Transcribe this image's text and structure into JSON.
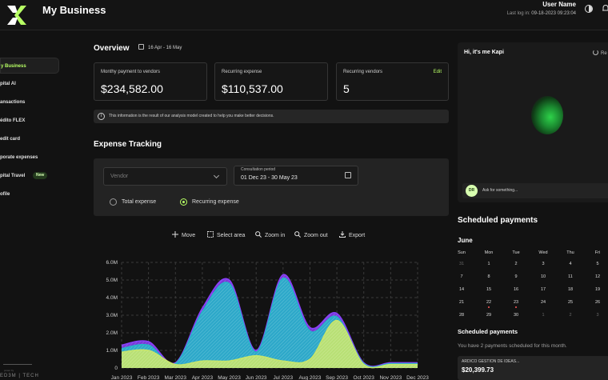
{
  "header": {
    "app_title": "My Business",
    "user_name": "User Name",
    "last_login_label": "Last log in:",
    "last_login_value": "09-18-2023 09:23:04"
  },
  "sidebar": {
    "items": [
      {
        "label": "y Business"
      },
      {
        "label": "pital AI"
      },
      {
        "label": "ansactions"
      },
      {
        "label": "édito FLEX"
      },
      {
        "label": "edit card"
      },
      {
        "label": "porate expenses"
      },
      {
        "label": "pital Travel",
        "badge": "New"
      },
      {
        "label": "ofile"
      }
    ],
    "footer_brand": "ED3M | TECH",
    "footer_small": "power by"
  },
  "overview": {
    "title": "Overview",
    "date_range": "16 Apr - 16 May",
    "cards": [
      {
        "label": "Monthy payment to vendors",
        "value": "$234,582.00"
      },
      {
        "label": "Recurring expense",
        "value": "$110,537.00"
      },
      {
        "label": "Recurring vendors",
        "value": "5",
        "action": "Edit"
      }
    ],
    "info": "This information is the result of our analysis model created to help you make better decisions."
  },
  "expense_tracking": {
    "title": "Expense Tracking",
    "vendor_placeholder": "Vendor",
    "period_label": "Consultation period",
    "period_value": "01 Dec 23 - 30 May 23",
    "radio_total": "Total expense",
    "radio_recurring": "Recurring expense",
    "selected": "recurring"
  },
  "toolbar": {
    "move": "Move",
    "select_area": "Select area",
    "zoom_in": "Zoom in",
    "zoom_out": "Zoom out",
    "export": "Export"
  },
  "chart_data": {
    "type": "area",
    "title": "",
    "xlabel": "",
    "ylabel": "",
    "ylim": [
      0,
      6000000
    ],
    "y_ticks": [
      "0",
      "1.0M",
      "2.0M",
      "3.0M",
      "4.0M",
      "5.0M",
      "6.0M"
    ],
    "categories": [
      "Jan 2023",
      "Feb 2023",
      "Mar 2023",
      "Apr 2023",
      "May 2023",
      "Jun 2023",
      "Jul 2023",
      "Aug 2023",
      "Sep 2023",
      "Oct 2023",
      "Nov 2023",
      "Dec 2023"
    ],
    "series": [
      {
        "values": [
          1300000,
          1500000,
          300000,
          3400000,
          5000000,
          1000000,
          5300000,
          2300000,
          3100000,
          300000,
          300000,
          300000
        ],
        "color": "#8a3ffc"
      },
      {
        "values": [
          1100000,
          1300000,
          250000,
          3200000,
          4800000,
          900000,
          5100000,
          2100000,
          2900000,
          250000,
          250000,
          250000
        ],
        "color": "#25b5c8"
      },
      {
        "values": [
          900000,
          1000000,
          200000,
          400000,
          400000,
          700000,
          400000,
          500000,
          2700000,
          200000,
          200000,
          200000
        ],
        "color": "#c8e66b"
      }
    ],
    "grid": true,
    "legend": "none"
  },
  "assistant": {
    "greeting": "Hi, it's me Kapi",
    "reset_label": "Re",
    "avatar_initials": "DR",
    "ask_placeholder": "Ask for something..."
  },
  "scheduled": {
    "title": "Scheduled payments",
    "month": "June",
    "weekdays": [
      "Sun",
      "Mon",
      "Tue",
      "Wed",
      "Thu",
      "Fri"
    ],
    "weeks": [
      [
        "31",
        "1",
        "2",
        "3",
        "4",
        "5"
      ],
      [
        "7",
        "8",
        "9",
        "10",
        "11",
        "12"
      ],
      [
        "14",
        "15",
        "16",
        "17",
        "18",
        "19"
      ],
      [
        "21",
        "22",
        "23",
        "24",
        "25",
        "26"
      ],
      [
        "28",
        "29",
        "30",
        "1",
        "2",
        "3"
      ]
    ],
    "subtitle": "Scheduled payments",
    "note": "You have 2 payments scheduled for this month.",
    "payment_vendor": "ARDICO GESTION DE IDEAS...",
    "payment_amount": "$20,399.73"
  }
}
